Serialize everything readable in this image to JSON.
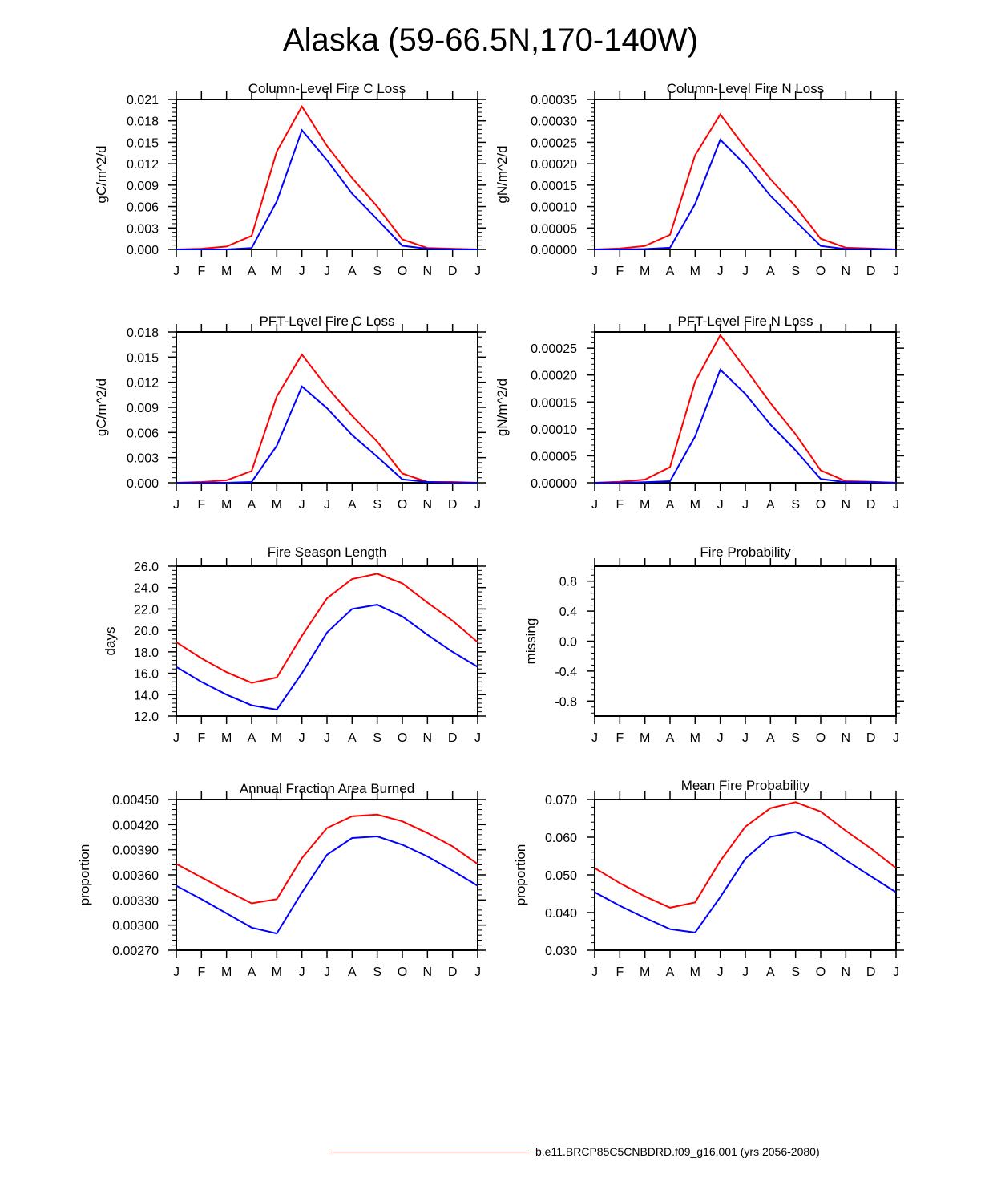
{
  "page": {
    "title": "Alaska (59-66.5N,170-140W)",
    "legend": {
      "label": "b.e11.BRCP85C5CNBDRD.f09_g16.001 (yrs 2056-2080)",
      "color": "#ff0000"
    }
  },
  "colors": {
    "series_red": "#ff0000",
    "series_blue": "#0000ff",
    "axis": "#000000"
  },
  "chart_data": [
    {
      "type": "line",
      "title": "Column-Level Fire C Loss",
      "ylabel": "gC/m^2/d",
      "xlabel": "",
      "categories": [
        "J",
        "F",
        "M",
        "A",
        "M",
        "J",
        "J",
        "A",
        "S",
        "O",
        "N",
        "D",
        "J"
      ],
      "ylim": [
        0,
        0.021
      ],
      "yticks": [
        "0.000",
        "0.003",
        "0.006",
        "0.009",
        "0.012",
        "0.015",
        "0.018",
        "0.021"
      ],
      "ytick_values": [
        0,
        0.003,
        0.006,
        0.009,
        0.012,
        0.015,
        0.018,
        0.021
      ],
      "series": [
        {
          "color": "#ff0000",
          "values": [
            0.0,
            0.0001,
            0.0004,
            0.0019,
            0.0137,
            0.02,
            0.0145,
            0.01,
            0.006,
            0.0014,
            0.0002,
            0.0001,
            0.0
          ]
        },
        {
          "color": "#0000ff",
          "values": [
            0.0,
            0.0,
            0.0,
            0.0002,
            0.0067,
            0.0167,
            0.0125,
            0.0078,
            0.0042,
            0.0005,
            0.0001,
            0.0,
            0.0
          ]
        }
      ]
    },
    {
      "type": "line",
      "title": "Column-Level Fire N Loss",
      "ylabel": "gN/m^2/d",
      "xlabel": "",
      "categories": [
        "J",
        "F",
        "M",
        "A",
        "M",
        "J",
        "J",
        "A",
        "S",
        "O",
        "N",
        "D",
        "J"
      ],
      "ylim": [
        0,
        0.00035
      ],
      "yticks": [
        "0.00000",
        "0.00005",
        "0.00010",
        "0.00015",
        "0.00020",
        "0.00025",
        "0.00030",
        "0.00035"
      ],
      "ytick_values": [
        0,
        5e-05,
        0.0001,
        0.00015,
        0.0002,
        0.00025,
        0.0003,
        0.00035
      ],
      "series": [
        {
          "color": "#ff0000",
          "values": [
            0.0,
            2e-06,
            8e-06,
            3.4e-05,
            0.00022,
            0.000315,
            0.000237,
            0.000164,
            0.0001,
            2.5e-05,
            4e-06,
            2e-06,
            0.0
          ]
        },
        {
          "color": "#0000ff",
          "values": [
            0.0,
            0.0,
            1e-06,
            4e-06,
            0.000106,
            0.000256,
            0.000197,
            0.000125,
            6.6e-05,
            8e-06,
            1e-06,
            1e-06,
            0.0
          ]
        }
      ]
    },
    {
      "type": "line",
      "title": "PFT-Level Fire C Loss",
      "ylabel": "gC/m^2/d",
      "xlabel": "",
      "categories": [
        "J",
        "F",
        "M",
        "A",
        "M",
        "J",
        "J",
        "A",
        "S",
        "O",
        "N",
        "D",
        "J"
      ],
      "ylim": [
        0,
        0.018
      ],
      "yticks": [
        "0.000",
        "0.003",
        "0.006",
        "0.009",
        "0.012",
        "0.015",
        "0.018"
      ],
      "ytick_values": [
        0,
        0.003,
        0.006,
        0.009,
        0.012,
        0.015,
        0.018
      ],
      "series": [
        {
          "color": "#ff0000",
          "values": [
            0.0,
            0.0001,
            0.0003,
            0.0014,
            0.0103,
            0.0153,
            0.0114,
            0.008,
            0.0049,
            0.0011,
            0.0001,
            0.0001,
            0.0
          ]
        },
        {
          "color": "#0000ff",
          "values": [
            0.0,
            0.0,
            0.0,
            0.0001,
            0.0044,
            0.0115,
            0.0089,
            0.0057,
            0.0031,
            0.0004,
            0.0001,
            0.0,
            0.0
          ]
        }
      ]
    },
    {
      "type": "line",
      "title": "PFT-Level Fire N Loss",
      "ylabel": "gN/m^2/d",
      "xlabel": "",
      "categories": [
        "J",
        "F",
        "M",
        "A",
        "M",
        "J",
        "J",
        "A",
        "S",
        "O",
        "N",
        "D",
        "J"
      ],
      "ylim": [
        0,
        0.00028
      ],
      "yticks": [
        "0.00000",
        "0.00005",
        "0.00010",
        "0.00015",
        "0.00020",
        "0.00025"
      ],
      "ytick_values": [
        0,
        5e-05,
        0.0001,
        0.00015,
        0.0002,
        0.00025
      ],
      "series": [
        {
          "color": "#ff0000",
          "values": [
            0.0,
            2e-06,
            6e-06,
            2.9e-05,
            0.000188,
            0.000274,
            0.000212,
            0.000148,
            9e-05,
            2.3e-05,
            3e-06,
            2e-06,
            0.0
          ]
        },
        {
          "color": "#0000ff",
          "values": [
            0.0,
            0.0,
            1e-06,
            3e-06,
            8.6e-05,
            0.00021,
            0.000165,
            0.000108,
            6e-05,
            7e-06,
            1e-06,
            1e-06,
            0.0
          ]
        }
      ]
    },
    {
      "type": "line",
      "title": "Fire Season Length",
      "ylabel": "days",
      "xlabel": "",
      "categories": [
        "J",
        "F",
        "M",
        "A",
        "M",
        "J",
        "J",
        "A",
        "S",
        "O",
        "N",
        "D",
        "J"
      ],
      "ylim": [
        12.0,
        26.0
      ],
      "yticks": [
        "12.0",
        "14.0",
        "16.0",
        "18.0",
        "20.0",
        "22.0",
        "24.0",
        "26.0"
      ],
      "ytick_values": [
        12,
        14,
        16,
        18,
        20,
        22,
        24,
        26
      ],
      "series": [
        {
          "color": "#ff0000",
          "values": [
            18.9,
            17.4,
            16.1,
            15.1,
            15.6,
            19.5,
            23.0,
            24.8,
            25.3,
            24.4,
            22.6,
            20.9,
            18.9
          ]
        },
        {
          "color": "#0000ff",
          "values": [
            16.6,
            15.2,
            14.0,
            13.0,
            12.6,
            16.0,
            19.8,
            22.0,
            22.4,
            21.3,
            19.6,
            18.0,
            16.6
          ]
        }
      ]
    },
    {
      "type": "line",
      "title": "Fire Probability",
      "ylabel": "missing",
      "xlabel": "",
      "categories": [
        "J",
        "F",
        "M",
        "A",
        "M",
        "J",
        "J",
        "A",
        "S",
        "O",
        "N",
        "D",
        "J"
      ],
      "ylim": [
        -1.0,
        1.0
      ],
      "yticks": [
        "-0.8",
        "-0.4",
        "0.0",
        "0.4",
        "0.8"
      ],
      "ytick_values": [
        -0.8,
        -0.4,
        0,
        0.4,
        0.8
      ],
      "series": []
    },
    {
      "type": "line",
      "title": "Annual Fraction Area Burned",
      "ylabel": "proportion",
      "xlabel": "",
      "categories": [
        "J",
        "F",
        "M",
        "A",
        "M",
        "J",
        "J",
        "A",
        "S",
        "O",
        "N",
        "D",
        "J"
      ],
      "ylim": [
        0.0027,
        0.0045
      ],
      "yticks": [
        "0.00270",
        "0.00300",
        "0.00330",
        "0.00360",
        "0.00390",
        "0.00420",
        "0.00450"
      ],
      "ytick_values": [
        0.0027,
        0.003,
        0.0033,
        0.0036,
        0.0039,
        0.0042,
        0.0045
      ],
      "series": [
        {
          "color": "#ff0000",
          "values": [
            0.00373,
            0.00357,
            0.00341,
            0.00326,
            0.00331,
            0.0038,
            0.00416,
            0.0043,
            0.00432,
            0.00424,
            0.0041,
            0.00394,
            0.00373
          ]
        },
        {
          "color": "#0000ff",
          "values": [
            0.00347,
            0.00331,
            0.00314,
            0.00297,
            0.0029,
            0.00339,
            0.00384,
            0.00404,
            0.00406,
            0.00396,
            0.00382,
            0.00365,
            0.00347
          ]
        }
      ]
    },
    {
      "type": "line",
      "title": "Mean Fire Probability",
      "ylabel": "proportion",
      "xlabel": "",
      "categories": [
        "J",
        "F",
        "M",
        "A",
        "M",
        "J",
        "J",
        "A",
        "S",
        "O",
        "N",
        "D",
        "J"
      ],
      "ylim": [
        0.03,
        0.07
      ],
      "yticks": [
        "0.030",
        "0.040",
        "0.050",
        "0.060",
        "0.070"
      ],
      "ytick_values": [
        0.03,
        0.04,
        0.05,
        0.06,
        0.07
      ],
      "series": [
        {
          "color": "#ff0000",
          "values": [
            0.0518,
            0.0478,
            0.0443,
            0.0413,
            0.0427,
            0.0537,
            0.0628,
            0.0677,
            0.0693,
            0.0668,
            0.0617,
            0.057,
            0.0518
          ]
        },
        {
          "color": "#0000ff",
          "values": [
            0.0454,
            0.0418,
            0.0386,
            0.0356,
            0.0347,
            0.0441,
            0.0543,
            0.0601,
            0.0614,
            0.0585,
            0.0539,
            0.0496,
            0.0454
          ]
        }
      ]
    }
  ]
}
